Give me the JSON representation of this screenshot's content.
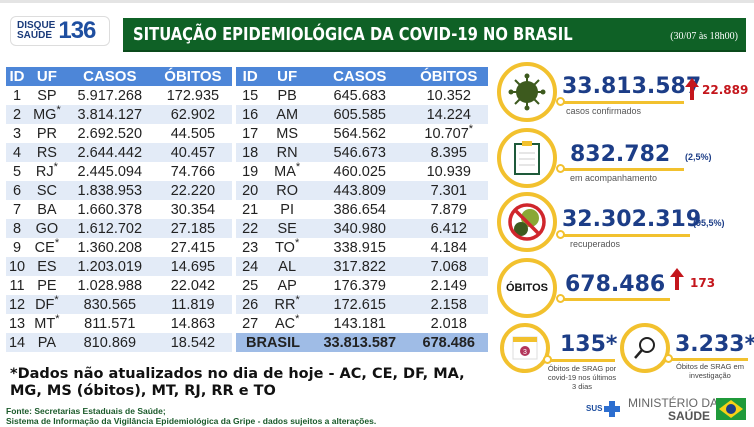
{
  "header": {
    "logo_top": "DISQUE",
    "logo_bottom": "SAÚDE",
    "logo_number": "136",
    "title": "SITUAÇÃO EPIDEMIOLÓGICA DA COVID-19 NO BRASIL",
    "date": "(30/07 às 18h00)"
  },
  "table": {
    "headers": [
      "ID",
      "UF",
      "CASOS",
      "ÓBITOS"
    ],
    "left": [
      [
        "1",
        "SP",
        "5.917.268",
        "172.935"
      ],
      [
        "2",
        "MG*",
        "3.814.127",
        "62.902"
      ],
      [
        "3",
        "PR",
        "2.692.520",
        "44.505"
      ],
      [
        "4",
        "RS",
        "2.644.442",
        "40.457"
      ],
      [
        "5",
        "RJ*",
        "2.445.094",
        "74.766"
      ],
      [
        "6",
        "SC",
        "1.838.953",
        "22.220"
      ],
      [
        "7",
        "BA",
        "1.660.378",
        "30.354"
      ],
      [
        "8",
        "GO",
        "1.612.702",
        "27.185"
      ],
      [
        "9",
        "CE*",
        "1.360.208",
        "27.415"
      ],
      [
        "10",
        "ES",
        "1.203.019",
        "14.695"
      ],
      [
        "11",
        "PE",
        "1.028.988",
        "22.042"
      ],
      [
        "12",
        "DF*",
        "830.565",
        "11.819"
      ],
      [
        "13",
        "MT*",
        "811.571",
        "14.863"
      ],
      [
        "14",
        "PA",
        "810.869",
        "18.542"
      ]
    ],
    "right": [
      [
        "15",
        "PB",
        "645.683",
        "10.352"
      ],
      [
        "16",
        "AM",
        "605.585",
        "14.224"
      ],
      [
        "17",
        "MS",
        "564.562",
        "10.707*"
      ],
      [
        "18",
        "RN",
        "546.673",
        "8.395"
      ],
      [
        "19",
        "MA*",
        "460.025",
        "10.939"
      ],
      [
        "20",
        "RO",
        "443.809",
        "7.301"
      ],
      [
        "21",
        "PI",
        "386.654",
        "7.879"
      ],
      [
        "22",
        "SE",
        "340.980",
        "6.412"
      ],
      [
        "23",
        "TO*",
        "338.915",
        "4.184"
      ],
      [
        "24",
        "AL",
        "317.822",
        "7.068"
      ],
      [
        "25",
        "AP",
        "176.379",
        "2.149"
      ],
      [
        "26",
        "RR*",
        "172.615",
        "2.158"
      ],
      [
        "27",
        "AC*",
        "143.181",
        "2.018"
      ]
    ],
    "total": {
      "label": "BRASIL",
      "casos": "33.813.587",
      "obitos": "678.486"
    }
  },
  "stats": {
    "confirmed": {
      "value": "33.813.587",
      "increase": "22.889",
      "label": "casos confirmados"
    },
    "monitoring": {
      "value": "832.782",
      "pct": "(2,5%)",
      "label": "em acompanhamento"
    },
    "recovered": {
      "value": "32.302.319",
      "pct": "(95,5%)",
      "label": "recuperados"
    },
    "deaths": {
      "badge": "ÓBITOS",
      "value": "678.486",
      "increase": "173"
    },
    "srag_recent": {
      "value": "135*",
      "calendar_day": "3",
      "label": "Óbitos de SRAG por covid-19 nos últimos 3 dias"
    },
    "srag_investigation": {
      "value": "3.233*",
      "label": "Óbitos de SRAG em investigação"
    }
  },
  "footer": {
    "note": "*Dados não atualizados no dia de hoje - AC, CE, DF, MA, MG, MS (óbitos), MT, RJ, RR e TO",
    "source1": "Fonte: Secretarias Estaduais de Saúde;",
    "source2": "Sistema de Informação da Vigilância Epidemiológica da Gripe - dados sujeitos a alterações.",
    "sus": "SUS",
    "ministry1": "MINISTÉRIO DA",
    "ministry2": "SAÚDE"
  },
  "colors": {
    "green": "#0f6126",
    "blue_header": "#4d86d8",
    "navy": "#1c3d87",
    "yellow": "#f2c12e",
    "red": "#c4161c"
  }
}
